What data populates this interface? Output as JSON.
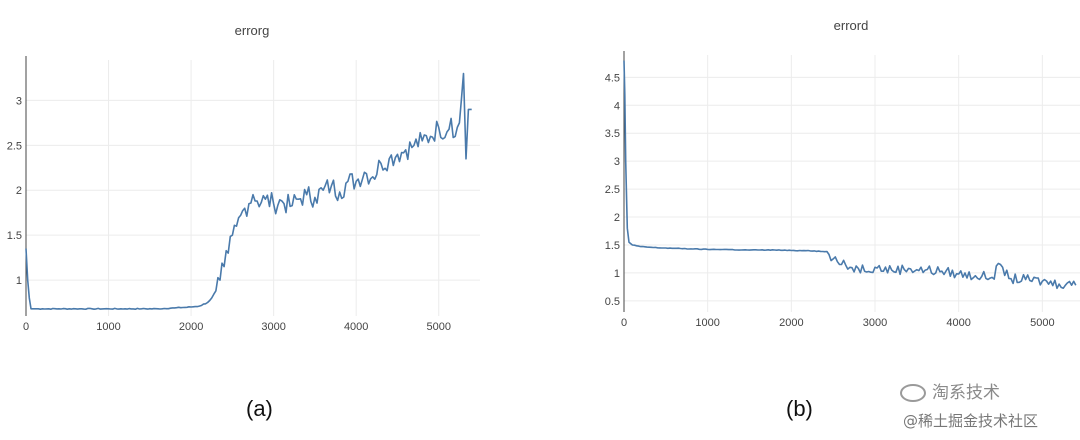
{
  "chart_data": [
    {
      "type": "line",
      "title": "errorg",
      "xticks": [
        0,
        1000,
        2000,
        3000,
        4000,
        5000
      ],
      "yticks": [
        1,
        1.5,
        2,
        2.5,
        3
      ],
      "ytick_labels": [
        "1",
        "1.5",
        "2",
        "2.5",
        "3"
      ],
      "xlim": [
        0,
        5500
      ],
      "ylim": [
        0.6,
        3.45
      ],
      "grid": true,
      "series": [
        {
          "color": "#4a7aab",
          "x": [
            0,
            20,
            40,
            60,
            100,
            200,
            400,
            600,
            800,
            1000,
            1200,
            1400,
            1600,
            1800,
            2000,
            2100,
            2200,
            2250,
            2300,
            2350,
            2400,
            2450,
            2500,
            2550,
            2600,
            2650,
            2700,
            2750,
            2800,
            2900,
            3000,
            3100,
            3200,
            3300,
            3400,
            3500,
            3600,
            3700,
            3800,
            3900,
            4000,
            4100,
            4200,
            4300,
            4400,
            4500,
            4600,
            4700,
            4800,
            4900,
            5000,
            5100,
            5150,
            5200,
            5250,
            5300,
            5330,
            5360,
            5400
          ],
          "y": [
            1.35,
            1.0,
            0.8,
            0.68,
            0.68,
            0.68,
            0.68,
            0.68,
            0.68,
            0.68,
            0.68,
            0.68,
            0.68,
            0.69,
            0.7,
            0.71,
            0.75,
            0.8,
            0.88,
            1.0,
            1.15,
            1.3,
            1.5,
            1.6,
            1.72,
            1.8,
            1.85,
            1.95,
            1.88,
            1.9,
            1.85,
            1.88,
            1.82,
            1.9,
            1.95,
            1.92,
            2.0,
            2.05,
            1.98,
            2.1,
            2.1,
            2.2,
            2.15,
            2.3,
            2.35,
            2.4,
            2.45,
            2.5,
            2.55,
            2.6,
            2.7,
            2.65,
            2.8,
            2.6,
            2.75,
            3.3,
            2.35,
            2.9,
            2.9
          ]
        }
      ]
    },
    {
      "type": "line",
      "title": "errord",
      "xticks": [
        0,
        1000,
        2000,
        3000,
        4000,
        5000
      ],
      "yticks": [
        0.5,
        1,
        1.5,
        2,
        2.5,
        3,
        3.5,
        4,
        4.5
      ],
      "ytick_labels": [
        "0.5",
        "1",
        "1.5",
        "2",
        "2.5",
        "3",
        "3.5",
        "4",
        "4.5"
      ],
      "xlim": [
        0,
        5450
      ],
      "ylim": [
        0.3,
        4.9
      ],
      "grid": true,
      "series": [
        {
          "color": "#4a7aab",
          "x": [
            0,
            10,
            20,
            40,
            60,
            100,
            200,
            400,
            600,
            800,
            1000,
            1200,
            1400,
            1600,
            1800,
            2000,
            2200,
            2400,
            2450,
            2500,
            2550,
            2600,
            2700,
            2800,
            3000,
            3200,
            3400,
            3600,
            3800,
            4000,
            4200,
            4400,
            4500,
            4600,
            4800,
            5000,
            5200,
            5300,
            5400
          ],
          "y": [
            4.8,
            4.2,
            3.0,
            1.8,
            1.55,
            1.5,
            1.47,
            1.45,
            1.44,
            1.43,
            1.42,
            1.42,
            1.41,
            1.41,
            1.41,
            1.4,
            1.4,
            1.38,
            1.33,
            1.25,
            1.2,
            1.15,
            1.1,
            1.08,
            1.1,
            1.05,
            1.08,
            1.05,
            1.03,
            0.98,
            0.95,
            0.92,
            1.15,
            0.9,
            0.88,
            0.85,
            0.8,
            0.82,
            0.78
          ]
        }
      ]
    }
  ],
  "captions": {
    "a": "(a)",
    "b": "(b)"
  },
  "watermark": {
    "line1": "淘系技术",
    "line2": "@稀土掘金技术社区",
    "icon": "wechat-icon"
  }
}
